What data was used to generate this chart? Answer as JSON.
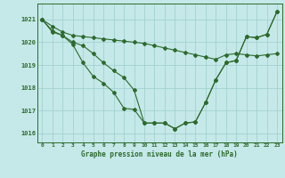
{
  "line1_x": [
    0,
    1,
    2,
    3,
    4,
    5,
    6,
    7,
    8,
    9,
    10,
    11,
    12,
    13,
    14,
    15,
    16,
    17,
    18,
    19,
    20,
    21,
    22,
    23
  ],
  "line1_y": [
    1021.0,
    1020.7,
    1020.45,
    1020.3,
    1020.25,
    1020.2,
    1020.15,
    1020.1,
    1020.05,
    1020.0,
    1019.95,
    1019.85,
    1019.75,
    1019.65,
    1019.55,
    1019.45,
    1019.35,
    1019.25,
    1019.45,
    1019.5,
    1019.45,
    1019.4,
    1019.45,
    1019.5
  ],
  "line2_x": [
    0,
    1,
    2,
    3,
    4,
    5,
    6,
    7,
    8,
    9,
    10,
    11,
    12,
    13,
    14,
    15,
    16,
    17,
    18,
    19,
    20,
    21,
    22,
    23
  ],
  "line2_y": [
    1021.0,
    1020.5,
    1020.3,
    1020.0,
    1019.85,
    1019.5,
    1019.1,
    1018.75,
    1018.45,
    1017.9,
    1016.45,
    1016.45,
    1016.45,
    1016.2,
    1016.45,
    1016.5,
    1017.35,
    1018.35,
    1019.1,
    1019.2,
    1020.25,
    1020.2,
    1020.35,
    1021.35
  ],
  "line3_x": [
    0,
    1,
    2,
    3,
    4,
    5,
    6,
    7,
    8,
    9,
    10,
    11,
    12,
    13,
    14,
    15,
    16,
    17,
    18,
    19,
    20,
    21,
    22,
    23
  ],
  "line3_y": [
    1021.0,
    1020.45,
    1020.3,
    1019.9,
    1019.1,
    1018.5,
    1018.2,
    1017.8,
    1017.1,
    1017.05,
    1016.45,
    1016.45,
    1016.45,
    1016.2,
    1016.45,
    1016.5,
    1017.35,
    1018.35,
    1019.1,
    1019.2,
    1020.25,
    1020.2,
    1020.35,
    1021.35
  ],
  "color": "#2d6a2d",
  "bg_color": "#c5e8e8",
  "grid_color": "#9ecece",
  "xlabel": "Graphe pression niveau de la mer (hPa)",
  "ylim": [
    1015.6,
    1021.7
  ],
  "xlim": [
    -0.5,
    23.5
  ],
  "yticks": [
    1016,
    1017,
    1018,
    1019,
    1020,
    1021
  ],
  "xticks": [
    0,
    1,
    2,
    3,
    4,
    5,
    6,
    7,
    8,
    9,
    10,
    11,
    12,
    13,
    14,
    15,
    16,
    17,
    18,
    19,
    20,
    21,
    22,
    23
  ]
}
